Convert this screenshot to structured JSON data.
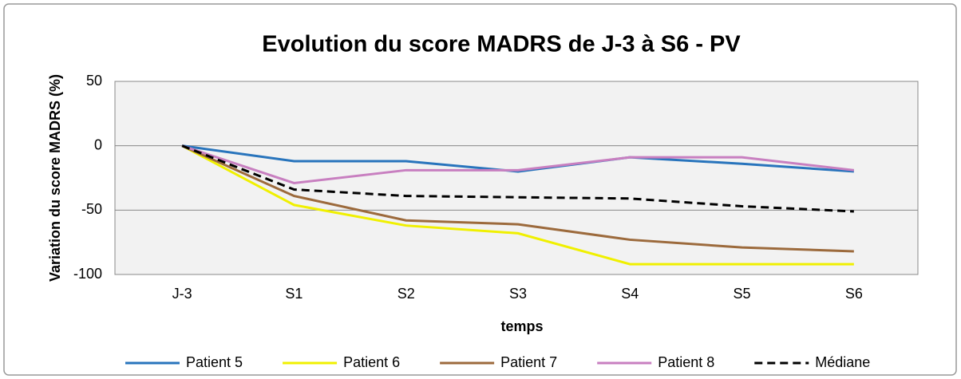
{
  "chart_data": {
    "type": "line",
    "title": "Evolution du score MADRS de J-3 à S6 - PV",
    "x_label": "temps",
    "y_label": "Variation du score MADRS (%)",
    "categories": [
      "J-3",
      "S1",
      "S2",
      "S3",
      "S4",
      "S5",
      "S6"
    ],
    "series": [
      {
        "name": "Patient 5",
        "color": "#2874bc",
        "values": [
          0,
          -12,
          -12,
          -20,
          -9,
          -14,
          -20
        ]
      },
      {
        "name": "Patient 6",
        "color": "#f0f000",
        "values": [
          0,
          -46,
          -62,
          -68,
          -92,
          -92,
          -92
        ]
      },
      {
        "name": "Patient 7",
        "color": "#9c6a3c",
        "values": [
          0,
          -39,
          -58,
          -61,
          -73,
          -79,
          -82
        ]
      },
      {
        "name": "Patient 8",
        "color": "#c87fc0",
        "values": [
          0,
          -29,
          -19,
          -19,
          -9,
          -9,
          -19
        ]
      },
      {
        "name": "Médiane",
        "color": "#000000",
        "dashed": true,
        "values": [
          0,
          -34,
          -39,
          -40,
          -41,
          -47,
          -51
        ]
      }
    ],
    "ylim": [
      -100,
      50
    ],
    "yticks": [
      -100,
      -50,
      0,
      50
    ],
    "grid": true,
    "legend": "bottom"
  }
}
